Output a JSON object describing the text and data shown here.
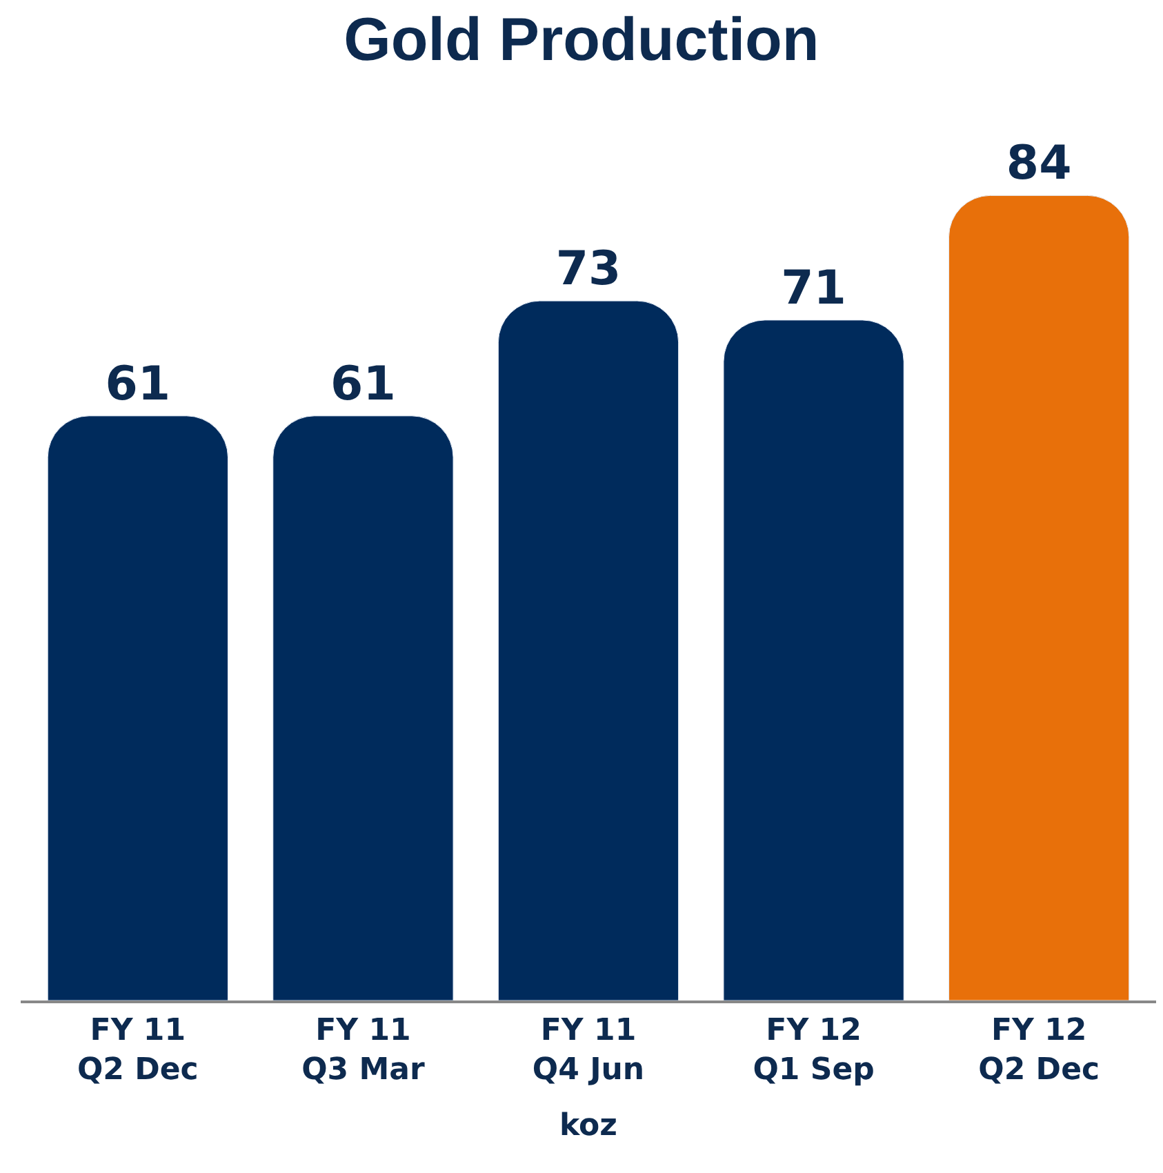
{
  "chart_data": {
    "type": "bar",
    "title": "Gold Production",
    "xlabel": "koz",
    "categories": [
      "FY 11\nQ2 Dec",
      "FY 11\nQ3 Mar",
      "FY 11\nQ4 Jun",
      "FY 12\nQ1 Sep",
      "FY 12\nQ2 Dec"
    ],
    "values": [
      61,
      61,
      73,
      71,
      84
    ],
    "colors": [
      "#002b5c",
      "#002b5c",
      "#002b5c",
      "#002b5c",
      "#e8700a"
    ],
    "data_labels": true,
    "legend": false,
    "tick_labels": "x"
  }
}
